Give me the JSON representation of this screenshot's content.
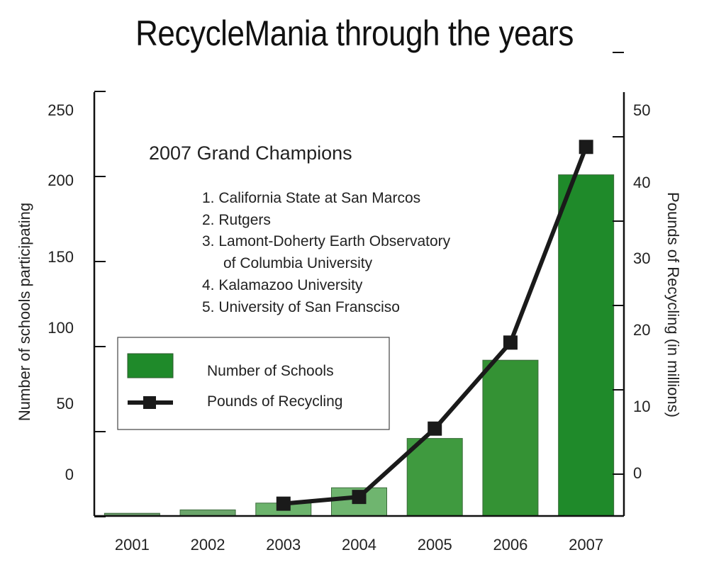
{
  "chart_data": {
    "type": "bar",
    "title": "RecycleMania through the years",
    "categories": [
      "2001",
      "2002",
      "2003",
      "2004",
      "2005",
      "2006",
      "2007"
    ],
    "series": [
      {
        "name": "Number of Schools",
        "type": "bar",
        "axis": "left",
        "values": [
          2,
          4,
          8,
          17,
          46,
          92,
          201
        ],
        "colors": [
          "#6a9a6a",
          "#6aa56a",
          "#6cb36c",
          "#6fb56f",
          "#3f9a3f",
          "#349234",
          "#1f8a2a"
        ]
      },
      {
        "name": "Pounds of Recycling",
        "type": "line",
        "axis": "right",
        "x": [
          "2003",
          "2004",
          "2005",
          "2006",
          "2007"
        ],
        "values": [
          -3.5,
          -2.7,
          5.4,
          15.6,
          38.8
        ],
        "color": "#1a1a1a"
      }
    ],
    "ylabel": "Number of schools participating",
    "y2label": "Pounds of Recycling (in millions)",
    "yticks": [
      0,
      50,
      100,
      150,
      200,
      250
    ],
    "y2ticks": [
      0,
      10,
      20,
      30,
      40,
      50
    ],
    "legend_position": "left-middle",
    "grid": false
  },
  "annotation": {
    "title": "2007 Grand Champions",
    "items": [
      "1. California State at San Marcos",
      "2. Rutgers",
      "3. Lamont-Doherty Earth Observatory",
      "of Columbia University",
      "4. Kalamazoo University",
      "5. University of San Fransciso"
    ]
  }
}
